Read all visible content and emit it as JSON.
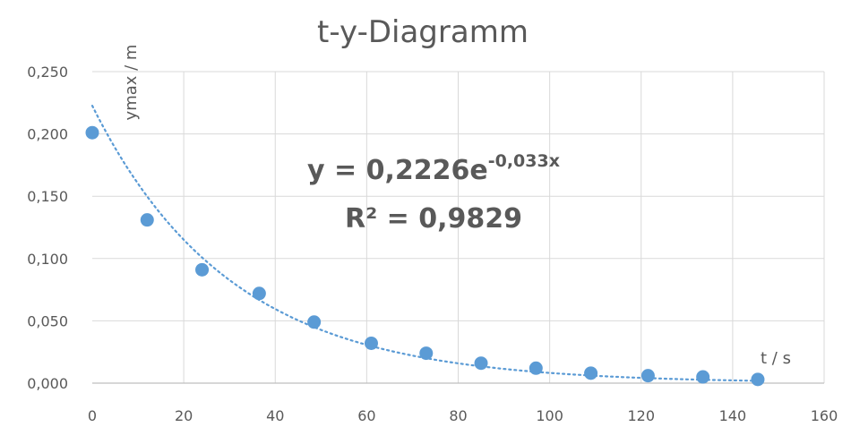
{
  "chart_data": {
    "type": "scatter",
    "title": "t-y-Diagramm",
    "xlabel": "t / s",
    "ylabel": "ymax / m",
    "xlim": [
      0,
      160
    ],
    "ylim": [
      0,
      0.25
    ],
    "xticks": [
      0,
      20,
      40,
      60,
      80,
      100,
      120,
      140,
      160
    ],
    "yticks": [
      0,
      0.05,
      0.1,
      0.15,
      0.2,
      0.25
    ],
    "xtick_labels": [
      "0",
      "20",
      "40",
      "60",
      "80",
      "100",
      "120",
      "140",
      "160"
    ],
    "ytick_labels": [
      "0,000",
      "0,050",
      "0,100",
      "0,150",
      "0,200",
      "0,250"
    ],
    "grid": true,
    "series": [
      {
        "x": [
          0,
          12,
          24,
          36.5,
          48.5,
          61,
          73,
          85,
          97,
          109,
          121.5,
          133.5,
          145.5
        ],
        "y": [
          0.201,
          0.131,
          0.091,
          0.072,
          0.049,
          0.032,
          0.024,
          0.016,
          0.012,
          0.008,
          0.006,
          0.005,
          0.003
        ],
        "color": "#5b9bd5"
      }
    ],
    "trendline": {
      "type": "exponential",
      "a": 0.2226,
      "b": -0.033,
      "color": "#5b9bd5",
      "style": "dotted",
      "equation_base": "y = 0,2226e",
      "equation_exp": "-0,033x",
      "r_squared_label": "R² = 0,9829"
    }
  }
}
